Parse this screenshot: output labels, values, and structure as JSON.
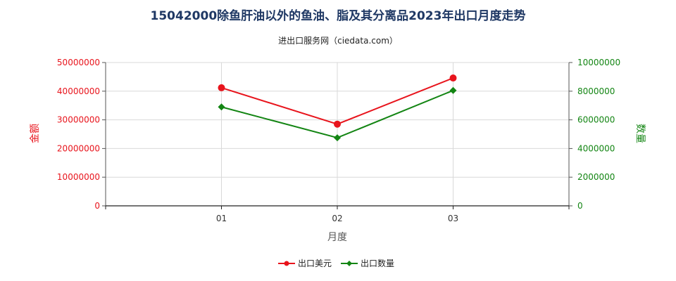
{
  "chart_data": {
    "type": "line",
    "title": "15042000除鱼肝油以外的鱼油、脂及其分离品2023年出口月度走势",
    "subtitle": "进出口服务网（ciedata.com）",
    "xlabel": "月度",
    "ylabel_left": "金额",
    "ylabel_right": "数量",
    "categories": [
      "01",
      "02",
      "03"
    ],
    "ylim_left": [
      0,
      50000000
    ],
    "ylim_right": [
      0,
      10000000
    ],
    "yticks_left": [
      "0",
      "10000000",
      "20000000",
      "30000000",
      "40000000",
      "50000000"
    ],
    "yticks_right": [
      "0",
      "2000000",
      "4000000",
      "6000000",
      "8000000",
      "10000000"
    ],
    "grid": true,
    "legend_position": "bottom",
    "series": [
      {
        "name": "出口美元",
        "axis": "left",
        "color": "#e8141c",
        "marker": "circle",
        "values": [
          41200000,
          28500000,
          44600000
        ]
      },
      {
        "name": "出口数量",
        "axis": "right",
        "color": "#138513",
        "marker": "diamond",
        "values": [
          6900000,
          4750000,
          8050000
        ]
      }
    ]
  }
}
